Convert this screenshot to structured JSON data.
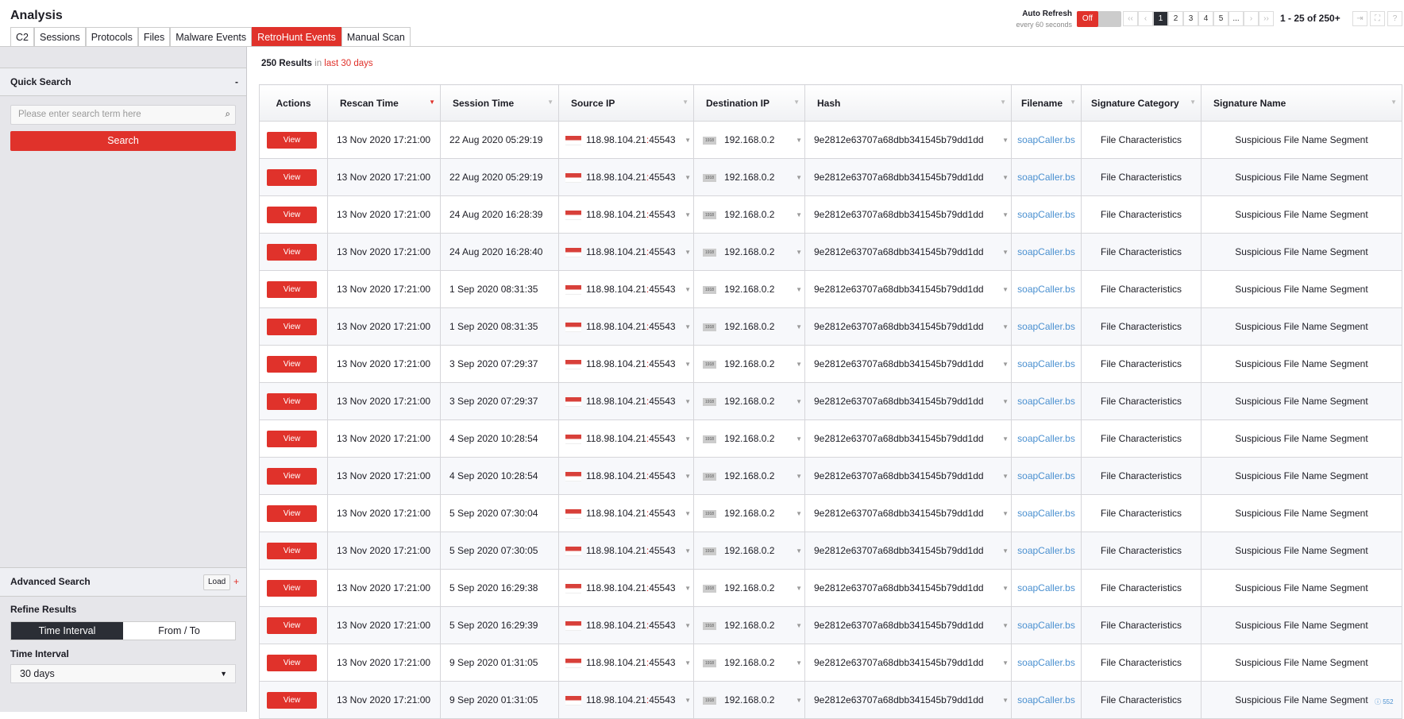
{
  "header": {
    "title": "Analysis",
    "tabs": [
      "C2",
      "Sessions",
      "Protocols",
      "Files",
      "Malware Events",
      "RetroHunt Events",
      "Manual Scan"
    ],
    "active_tab": "RetroHunt Events"
  },
  "auto_refresh": {
    "label": "Auto Refresh",
    "sub": "every 60 seconds",
    "state": "Off"
  },
  "pager": {
    "pages": [
      "1",
      "2",
      "3",
      "4",
      "5",
      "..."
    ],
    "current": "1",
    "count": "1 - 25 of 250+"
  },
  "sidebar": {
    "quick_search": "Quick Search",
    "collapse": "-",
    "placeholder": "Please enter search term here",
    "search_btn": "Search",
    "advanced": "Advanced Search",
    "load": "Load",
    "add": "+",
    "refine": "Refine Results",
    "seg": [
      "Time Interval",
      "From / To"
    ],
    "interval_label": "Time Interval",
    "interval_value": "30 days"
  },
  "results": {
    "count": "250 Results",
    "in": "in",
    "range": "last 30 days"
  },
  "table": {
    "columns": [
      "Actions",
      "Rescan Time",
      "Session Time",
      "Source IP",
      "Destination IP",
      "Hash",
      "Filename",
      "Signature Category",
      "Signature Name"
    ],
    "view_label": "View",
    "rescan": "13 Nov 2020 17:21:00",
    "src_ip": "118.98.104.21",
    "src_port": "45543",
    "dst_ip": "192.168.0.2",
    "lan_badge": "1918",
    "hash": "9e2812e63707a68dbb341545b79dd1dd",
    "filename": "soapCaller.bs",
    "category": "File Characteristics",
    "signature": "Suspicious File Name Segment",
    "session_times": [
      "22 Aug 2020 05:29:19",
      "22 Aug 2020 05:29:19",
      "24 Aug 2020 16:28:39",
      "24 Aug 2020 16:28:40",
      "1 Sep 2020 08:31:35",
      "1 Sep 2020 08:31:35",
      "3 Sep 2020 07:29:37",
      "3 Sep 2020 07:29:37",
      "4 Sep 2020 10:28:54",
      "4 Sep 2020 10:28:54",
      "5 Sep 2020 07:30:04",
      "5 Sep 2020 07:30:05",
      "5 Sep 2020 16:29:38",
      "5 Sep 2020 16:29:39",
      "9 Sep 2020 01:31:05",
      "9 Sep 2020 01:31:05"
    ]
  },
  "footer_info": "552",
  "colors": {
    "accent": "#e0322b",
    "dark": "#2b2e35",
    "link": "#4a90d0"
  }
}
